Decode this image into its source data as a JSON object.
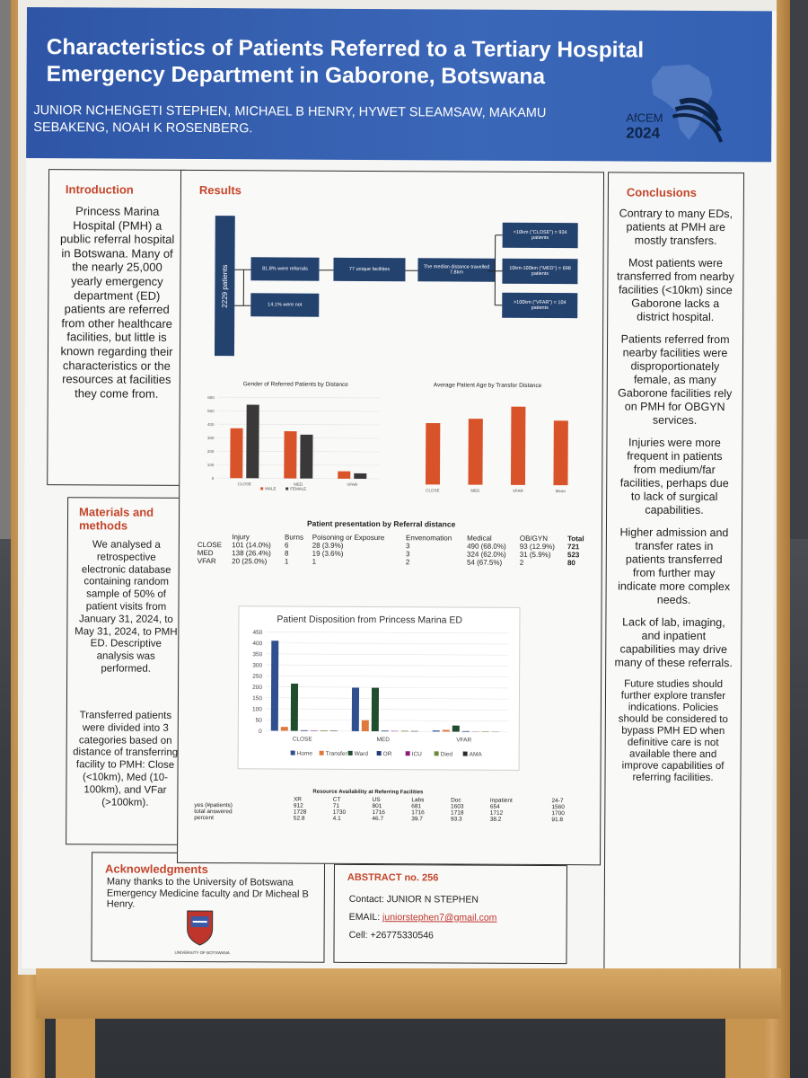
{
  "poster": {
    "title": "Characteristics of Patients Referred to a Tertiary Hospital Emergency Department in Gaborone, Botswana",
    "authors": "JUNIOR NCHENGETI STEPHEN, MICHAEL B HENRY, HYWET SLEAMSAW, MAKAMU SEBAKENG, NOAH K ROSENBERG.",
    "logo": {
      "name": "AfCEM",
      "year": "2024"
    }
  },
  "introduction": {
    "heading": "Introduction",
    "text": "Princess Marina Hospital (PMH) a public referral hospital in Botswana. Many of the nearly 25,000 yearly emergency department (ED) patients are referred from other healthcare facilities, but little is known regarding their characteristics or the resources at facilities they come from."
  },
  "methods": {
    "heading": "Materials and methods",
    "p1": "We analysed a retrospective electronic database containing random sample of 50% of patient visits from January 31, 2024, to May 31, 2024, to PMH ED. Descriptive analysis was performed.",
    "p2": "Transferred patients were divided into 3 categories based on distance of transferring facility to PMH: Close (<10km), Med (10-100km), and VFar (>100km)."
  },
  "acknowledgments": {
    "heading": "Acknowledgments",
    "text": "Many thanks to the  University of Botswana Emergency Medicine faculty and Dr Micheal B Henry.",
    "seal_text": "UNIVERSITY OF BOTSWANA"
  },
  "results": {
    "heading": "Results",
    "flow": {
      "total": "2229 patients",
      "referrals": "81.8% were referrals",
      "not": "14.1% were not",
      "facilities": "77 unique facilities",
      "median": "The median distance travelled 7.8km",
      "close": "<10km (\"CLOSE\") = 934 patients",
      "med": "10km-100km (\"MED\") = 698 patients",
      "vfar": ">100km (\"VFAR\") = 104 patients"
    },
    "presentation_table": {
      "title": "Patient presentation by Referral distance",
      "headers": [
        "",
        "Injury",
        "Burns",
        "Poisoning or Exposure",
        "Envenomation",
        "Medical",
        "OB/GYN",
        "Total"
      ],
      "rows": [
        [
          "CLOSE",
          "101 (14.0%)",
          "6",
          "28 (3.9%)",
          "3",
          "490 (68.0%)",
          "93 (12.9%)",
          "721"
        ],
        [
          "MED",
          "138 (26.4%)",
          "8",
          "19 (3.6%)",
          "3",
          "324 (62.0%)",
          "31 (5.9%)",
          "523"
        ],
        [
          "VFAR",
          "20 (25.0%)",
          "1",
          "1",
          "2",
          "54 (67.5%)",
          "2",
          "80"
        ]
      ]
    },
    "resource_table": {
      "title": "Resource Availability at Referring Facilities",
      "headers": [
        "",
        "XR",
        "CT",
        "US",
        "Labs",
        "Doc",
        "Inpatient",
        "24-7"
      ],
      "rows": [
        [
          "yes (#patients)",
          "912",
          "71",
          "801",
          "681",
          "1603",
          "654",
          "1560"
        ],
        [
          "total answered",
          "1728",
          "1730",
          "1716",
          "1716",
          "1718",
          "1712",
          "1700"
        ],
        [
          "percent",
          "52.8",
          "4.1",
          "46.7",
          "39.7",
          "93.3",
          "38.2",
          "91.8"
        ]
      ]
    }
  },
  "chart_data": [
    {
      "type": "bar",
      "title": "Gender of Referred Patients by Distance",
      "categories": [
        "CLOSE",
        "MED",
        "VFAR"
      ],
      "series": [
        {
          "name": "MALE",
          "values": [
            370,
            350,
            55
          ],
          "color": "#d9532a"
        },
        {
          "name": "FEMALE",
          "values": [
            545,
            325,
            40
          ],
          "color": "#3a3838"
        }
      ],
      "ylim": [
        0,
        600
      ],
      "yticks": [
        "0",
        "100",
        "200",
        "300",
        "400",
        "500",
        "600"
      ]
    },
    {
      "type": "bar",
      "title": "Average Patient Age by Transfer Distance",
      "categories": [
        "CLOSE",
        "MED",
        "VFAR",
        "Mean"
      ],
      "values": [
        40,
        43,
        51,
        42
      ],
      "color": "#d9532a",
      "ylim": [
        0,
        55
      ]
    },
    {
      "type": "bar",
      "title": "Patient Disposition from Princess Marina ED",
      "categories": [
        "CLOSE",
        "MED",
        "VFAR"
      ],
      "series": [
        {
          "name": "Home",
          "values": [
            410,
            198,
            5
          ],
          "color": "#2f4f8f"
        },
        {
          "name": "Transfer",
          "values": [
            18,
            50,
            8
          ],
          "color": "#e07a3c"
        },
        {
          "name": "Ward",
          "values": [
            215,
            198,
            28
          ],
          "color": "#1f4d2e"
        },
        {
          "name": "OR",
          "values": [
            3,
            3,
            3
          ],
          "color": "#243a7a"
        },
        {
          "name": "ICU",
          "values": [
            2,
            2,
            1
          ],
          "color": "#8a1d7a"
        },
        {
          "name": "Died",
          "values": [
            3,
            3,
            2
          ],
          "color": "#6a8a3a"
        },
        {
          "name": "AMA",
          "values": [
            2,
            2,
            1
          ],
          "color": "#2c2c2c"
        }
      ],
      "ylim": [
        0,
        450
      ],
      "yticks": [
        "0",
        "50",
        "100",
        "150",
        "200",
        "250",
        "300",
        "350",
        "400",
        "450"
      ]
    }
  ],
  "conclusions": {
    "heading": "Conclusions",
    "paragraphs": [
      "Contrary to many EDs, patients at PMH are mostly transfers.",
      "Most patients were transferred from nearby facilities (<10km) since Gaborone lacks a district hospital.",
      "Patients referred from nearby facilities were disproportionately female, as many Gaborone facilities rely on PMH for OBGYN services.",
      "Injuries were more frequent in patients from medium/far facilities, perhaps due to lack of surgical capabilities.",
      "Higher admission and transfer rates in patients transferred from further may indicate more complex needs.",
      "Lack of lab, imaging, and inpatient capabilities may drive many of these referrals.",
      "Future studies should further explore transfer indications. Policies should be considered to bypass PMH ED when definitive care is not available there and improve capabilities of referring facilities."
    ]
  },
  "abstract": {
    "heading": "ABSTRACT no. 256",
    "contact": "Contact: JUNIOR N STEPHEN",
    "email_label": "EMAIL: ",
    "email": "juniorstephen7@gmail.com",
    "cell": "Cell: +26775330546"
  }
}
